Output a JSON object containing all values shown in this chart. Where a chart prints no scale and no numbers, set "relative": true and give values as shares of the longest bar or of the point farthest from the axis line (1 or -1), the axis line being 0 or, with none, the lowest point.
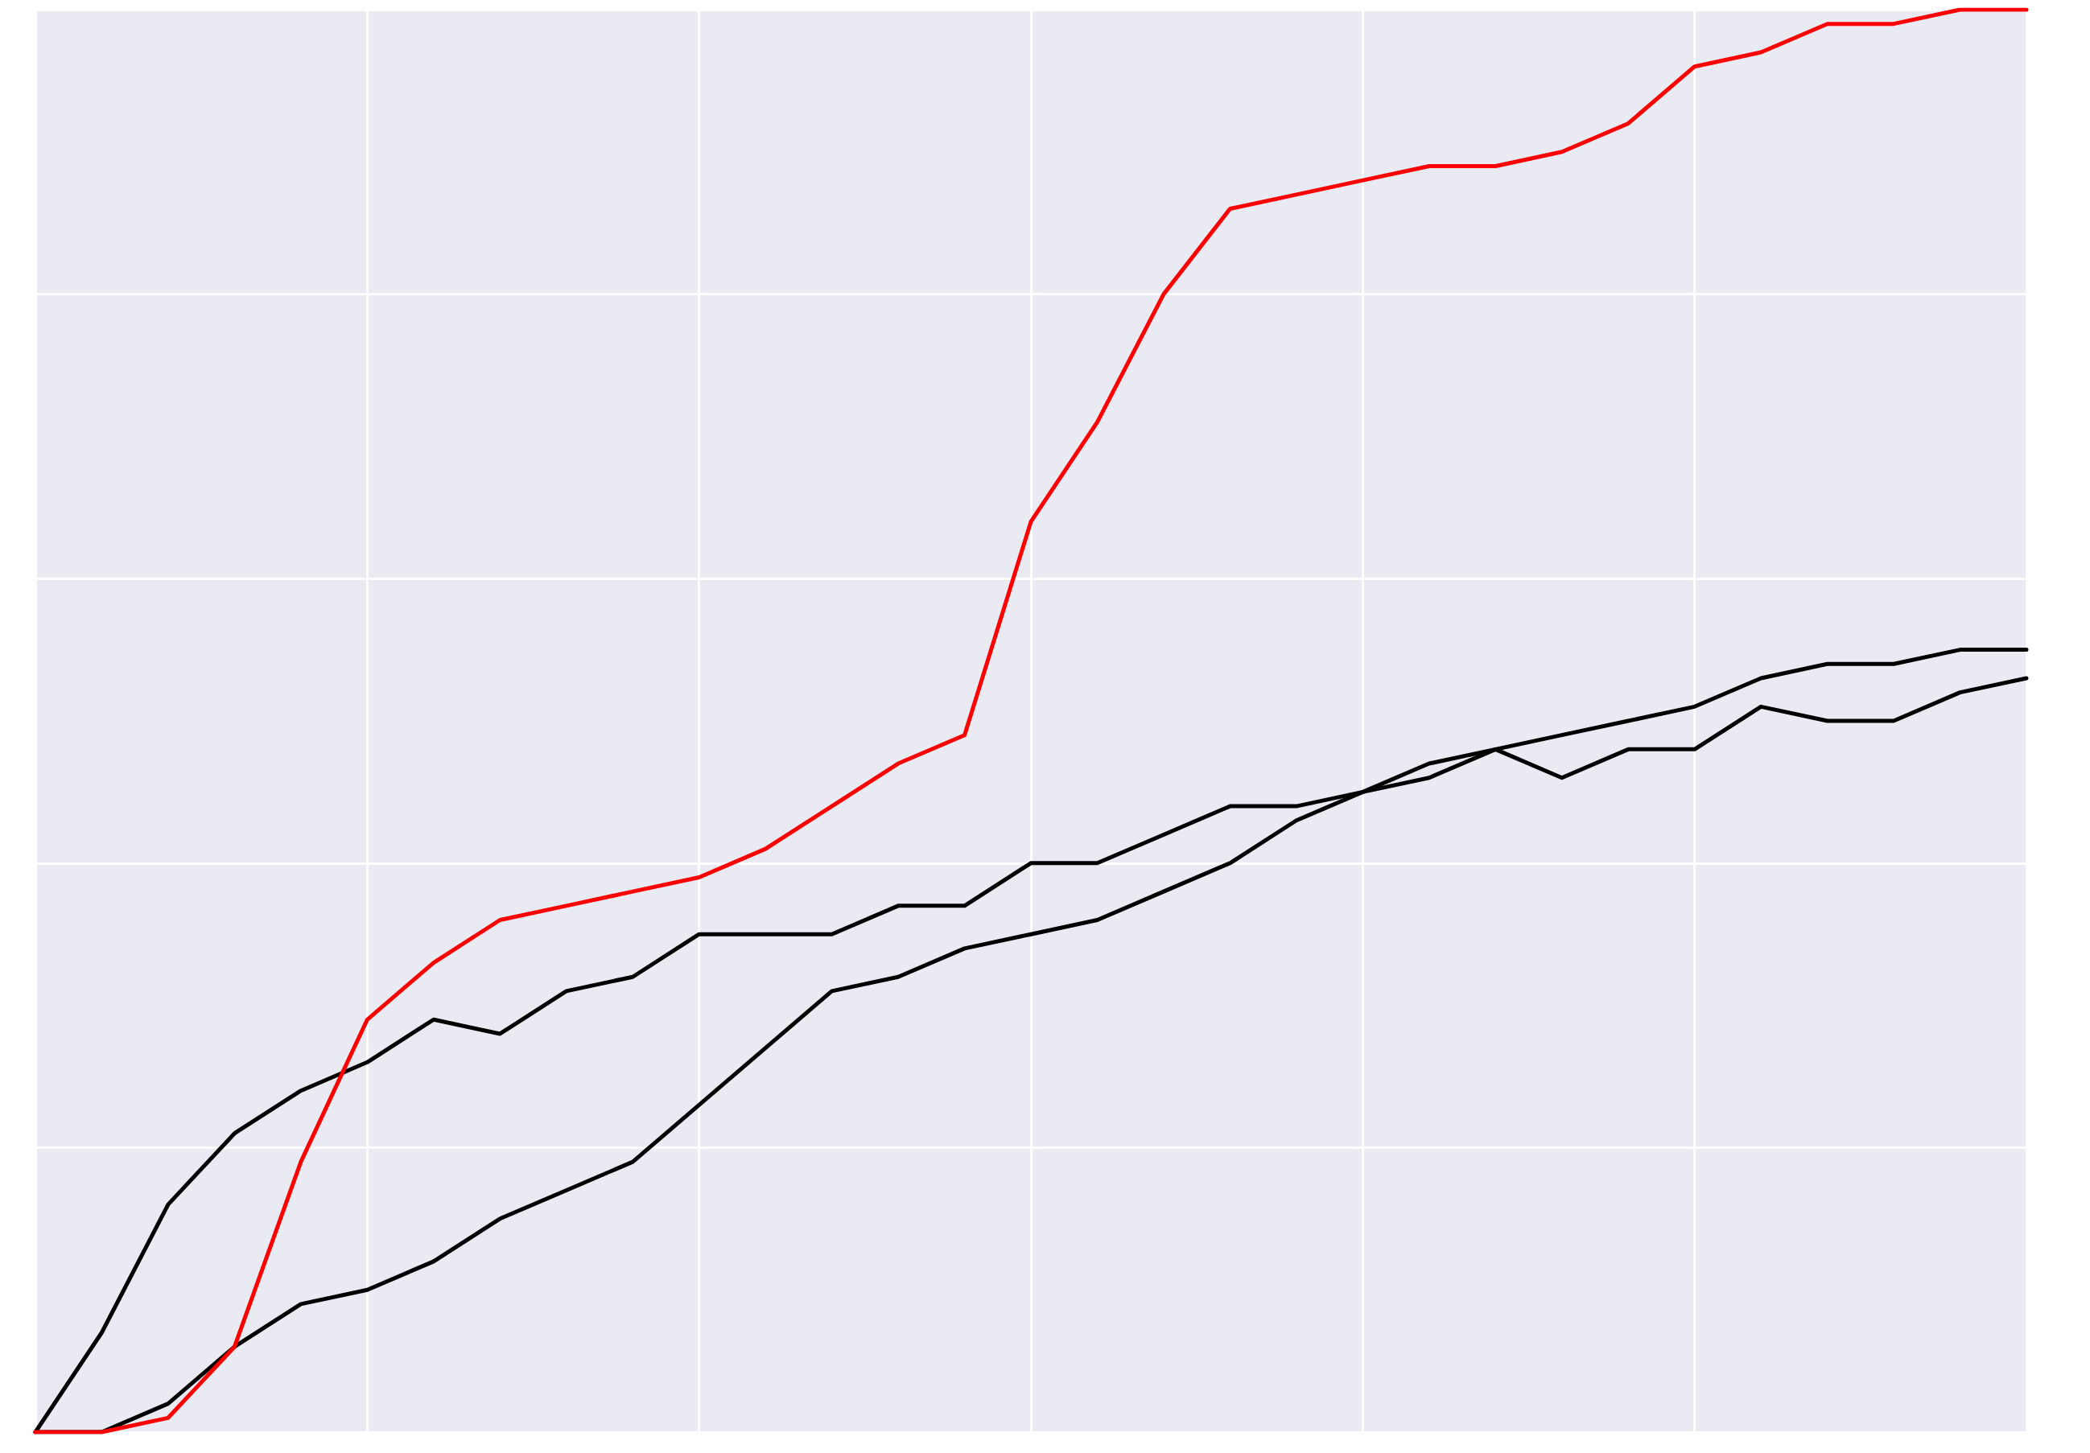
{
  "chart_data": {
    "type": "line",
    "relative": true,
    "grid": true,
    "marker": "none",
    "line_style": "solid",
    "categories": [
      null,
      null,
      null,
      null,
      null,
      null,
      null,
      null,
      null,
      null,
      null,
      null,
      null,
      null,
      null,
      null,
      null,
      null,
      null,
      null,
      null,
      null,
      null,
      null,
      null,
      null,
      null,
      null,
      null,
      null,
      null
    ],
    "series": [
      {
        "color": "#000000",
        "values": [
          0,
          0.07,
          0.16,
          0.21,
          0.24,
          0.26,
          0.29,
          0.28,
          0.31,
          0.32,
          0.35,
          0.35,
          0.35,
          0.37,
          0.37,
          0.4,
          0.4,
          0.42,
          0.44,
          0.44,
          0.45,
          0.47,
          0.48,
          0.46,
          0.48,
          0.48,
          0.51,
          0.5,
          0.5,
          0.52,
          0.53
        ]
      },
      {
        "color": "#000000",
        "values": [
          0,
          0,
          0.02,
          0.06,
          0.09,
          0.1,
          0.12,
          0.15,
          0.17,
          0.19,
          0.23,
          0.27,
          0.31,
          0.32,
          0.34,
          0.35,
          0.36,
          0.38,
          0.4,
          0.43,
          0.45,
          0.46,
          0.48,
          0.49,
          0.5,
          0.51,
          0.53,
          0.54,
          0.54,
          0.55,
          0.55
        ]
      },
      {
        "color": "#ff0000",
        "values": [
          0,
          0,
          0.01,
          0.06,
          0.19,
          0.29,
          0.33,
          0.36,
          0.37,
          0.38,
          0.39,
          0.41,
          0.44,
          0.47,
          0.49,
          0.64,
          0.71,
          0.8,
          0.86,
          0.87,
          0.88,
          0.89,
          0.89,
          0.9,
          0.92,
          0.96,
          0.97,
          0.99,
          0.99,
          1,
          1
        ]
      }
    ]
  }
}
